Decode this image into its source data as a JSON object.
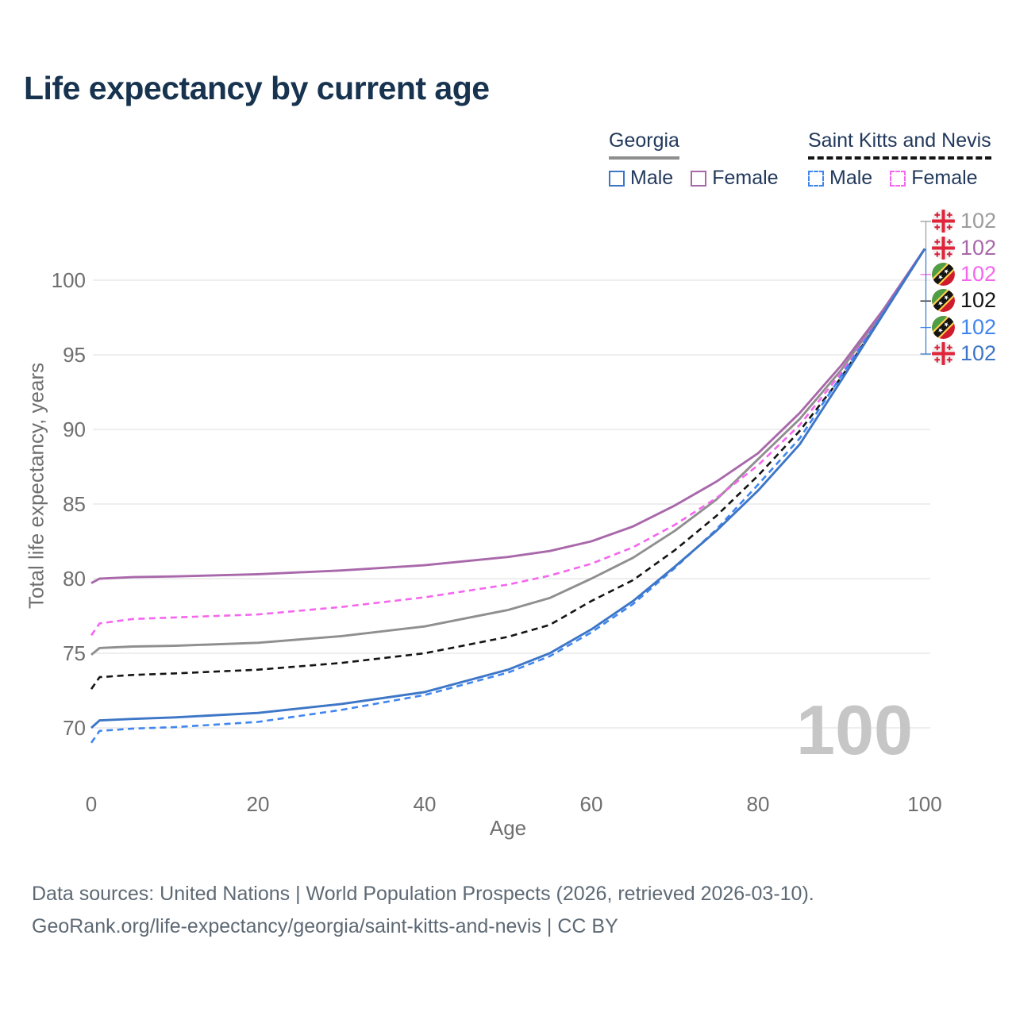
{
  "title": "Life expectancy by current age",
  "legend": {
    "groups": [
      {
        "label": "Georgia",
        "underline_style": "solid",
        "underline_color": "#8e8e8e",
        "items": [
          {
            "label": "Male",
            "color": "#3d76c6",
            "line_style": "solid"
          },
          {
            "label": "Female",
            "color": "#a868aa",
            "line_style": "solid"
          }
        ]
      },
      {
        "label": "Saint Kitts and Nevis",
        "underline_style": "dashed",
        "underline_color": "#141414",
        "items": [
          {
            "label": "Male",
            "color": "#4086ef",
            "line_style": "dashed"
          },
          {
            "label": "Female",
            "color": "#f566ee",
            "line_style": "dashed"
          }
        ]
      }
    ]
  },
  "chart_data": {
    "type": "line",
    "title": "Life expectancy by current age",
    "xlabel": "Age",
    "ylabel": "Total life expectancy, years",
    "xlim": [
      0,
      100
    ],
    "ylim": [
      68.5,
      103
    ],
    "x_ticks": [
      0,
      20,
      40,
      60,
      80,
      100
    ],
    "y_ticks": [
      70,
      75,
      80,
      85,
      90,
      95,
      100
    ],
    "grid": "horizontal",
    "gridline_color": "#e9e9e9",
    "tick_color": "#6f6f6f",
    "x": [
      0,
      1,
      5,
      10,
      20,
      30,
      40,
      50,
      55,
      60,
      65,
      70,
      75,
      80,
      85,
      90,
      95,
      100
    ],
    "series": [
      {
        "name": "Georgia (both sexes)",
        "country": "georgia",
        "color": "#8f8f8f",
        "style": "solid",
        "values": [
          74.9,
          75.35,
          75.45,
          75.5,
          75.7,
          76.15,
          76.8,
          77.9,
          78.7,
          80.0,
          81.4,
          83.2,
          85.3,
          88.0,
          90.7,
          94.0,
          97.9,
          102.1
        ]
      },
      {
        "name": "Georgia Female",
        "country": "georgia",
        "color": "#a868aa",
        "style": "solid",
        "values": [
          79.7,
          80.0,
          80.1,
          80.15,
          80.3,
          80.55,
          80.9,
          81.45,
          81.85,
          82.5,
          83.5,
          84.9,
          86.5,
          88.4,
          91.1,
          94.3,
          98.0,
          102.1
        ]
      },
      {
        "name": "Saint Kitts and Nevis Female",
        "country": "saint-kitts-and-nevis",
        "color": "#f566ee",
        "style": "dashed",
        "values": [
          76.2,
          77.0,
          77.3,
          77.4,
          77.6,
          78.1,
          78.75,
          79.6,
          80.2,
          81.0,
          82.1,
          83.6,
          85.4,
          87.6,
          90.3,
          93.8,
          97.8,
          102.1
        ]
      },
      {
        "name": "Saint Kitts and Nevis (both sexes)",
        "country": "saint-kitts-and-nevis",
        "color": "#141414",
        "style": "dashed",
        "values": [
          72.6,
          73.4,
          73.55,
          73.65,
          73.9,
          74.35,
          75.0,
          76.1,
          76.9,
          78.5,
          79.9,
          81.9,
          84.2,
          86.9,
          89.9,
          93.5,
          97.7,
          102.1
        ]
      },
      {
        "name": "Saint Kitts and Nevis Male",
        "country": "saint-kitts-and-nevis",
        "color": "#4086ef",
        "style": "dashed",
        "values": [
          69.0,
          69.8,
          69.95,
          70.05,
          70.4,
          71.2,
          72.2,
          73.7,
          74.8,
          76.4,
          78.3,
          80.7,
          83.3,
          86.3,
          89.4,
          93.6,
          97.8,
          102.1
        ]
      },
      {
        "name": "Georgia Male",
        "country": "georgia",
        "color": "#3d76c6",
        "style": "solid",
        "values": [
          70.0,
          70.5,
          70.6,
          70.7,
          71.0,
          71.6,
          72.4,
          73.9,
          75.0,
          76.6,
          78.5,
          80.8,
          83.2,
          85.9,
          89.0,
          93.3,
          97.7,
          102.1
        ]
      }
    ]
  },
  "end_labels": [
    {
      "series": "Georgia (both sexes)",
      "value": "102",
      "color": "#9b9b9b",
      "flag": "georgia"
    },
    {
      "series": "Georgia Female",
      "value": "102",
      "color": "#a868aa",
      "flag": "georgia"
    },
    {
      "series": "Saint Kitts and Nevis Female",
      "value": "102",
      "color": "#f566ee",
      "flag": "saint-kitts-and-nevis"
    },
    {
      "series": "Saint Kitts and Nevis (both sexes)",
      "value": "102",
      "color": "#141414",
      "flag": "saint-kitts-and-nevis"
    },
    {
      "series": "Saint Kitts and Nevis Male",
      "value": "102",
      "color": "#4086ef",
      "flag": "saint-kitts-and-nevis"
    },
    {
      "series": "Georgia Male",
      "value": "102",
      "color": "#3d76c6",
      "flag": "georgia"
    }
  ],
  "watermark": "100",
  "watermark_color": "#c6c6c6",
  "footer": {
    "line1": "Data sources: United Nations | World Population Prospects (2026, retrieved 2026-03-10).",
    "line2": "GeoRank.org/life-expectancy/georgia/saint-kitts-and-nevis | CC BY"
  }
}
